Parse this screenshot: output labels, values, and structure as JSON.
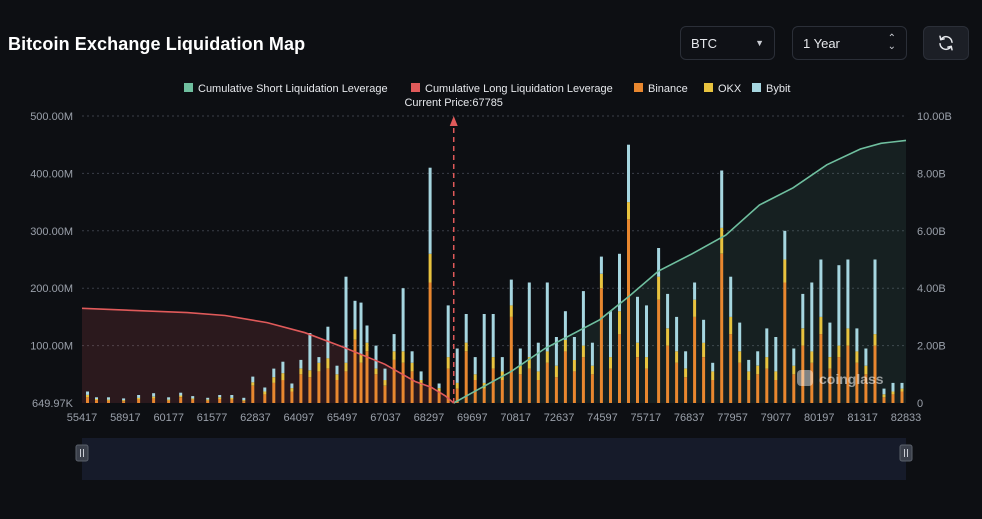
{
  "header": {
    "title": "Bitcoin Exchange Liquidation Map",
    "coin_select": "BTC",
    "range_select": "1 Year"
  },
  "colors": {
    "background": "#0d0f13",
    "short_line": "#6fbf9f",
    "long_line": "#e05a5a",
    "binance": "#e8872f",
    "okx": "#e8c33f",
    "bybit": "#a6d6e0",
    "price_marker": "#e05a5a"
  },
  "watermark": "coinglass",
  "chart_data": {
    "type": "bar",
    "current_price_label": "Current Price:67785",
    "current_price": 67785,
    "legend": [
      {
        "name": "Cumulative Short Liquidation Leverage",
        "color": "#6fbf9f"
      },
      {
        "name": "Cumulative Long Liquidation Leverage",
        "color": "#e05a5a"
      },
      {
        "name": "Binance",
        "color": "#e8872f"
      },
      {
        "name": "OKX",
        "color": "#e8c33f"
      },
      {
        "name": "Bybit",
        "color": "#a6d6e0"
      }
    ],
    "legend_position": "top-center",
    "x_ticks": [
      "55417",
      "58917",
      "60177",
      "61577",
      "62837",
      "64097",
      "65497",
      "67037",
      "68297",
      "69697",
      "70817",
      "72637",
      "74597",
      "75717",
      "76837",
      "77957",
      "79077",
      "80197",
      "81317",
      "82833"
    ],
    "x_range": [
      55417,
      82833
    ],
    "y_left_ticks": [
      "649.97K",
      "100.00M",
      "200.00M",
      "300.00M",
      "400.00M",
      "500.00M"
    ],
    "y_left_range": [
      0,
      500
    ],
    "y_left_unit": "M",
    "y_right_ticks": [
      "0",
      "2.00B",
      "4.00B",
      "6.00B",
      "8.00B",
      "10.00B"
    ],
    "y_right_range": [
      0,
      10
    ],
    "y_right_unit": "B",
    "grid": true,
    "bars": [
      {
        "price": 55600,
        "binance": 10,
        "okx": 4,
        "bybit": 6
      },
      {
        "price": 55900,
        "binance": 5,
        "okx": 2,
        "bybit": 3
      },
      {
        "price": 56300,
        "binance": 4,
        "okx": 2,
        "bybit": 4
      },
      {
        "price": 56800,
        "binance": 3,
        "okx": 2,
        "bybit": 3
      },
      {
        "price": 57300,
        "binance": 6,
        "okx": 3,
        "bybit": 5
      },
      {
        "price": 57800,
        "binance": 8,
        "okx": 3,
        "bybit": 6
      },
      {
        "price": 58300,
        "binance": 4,
        "okx": 2,
        "bybit": 4
      },
      {
        "price": 58700,
        "binance": 10,
        "okx": 3,
        "bybit": 5
      },
      {
        "price": 59100,
        "binance": 6,
        "okx": 2,
        "bybit": 4
      },
      {
        "price": 59600,
        "binance": 4,
        "okx": 2,
        "bybit": 3
      },
      {
        "price": 60000,
        "binance": 7,
        "okx": 3,
        "bybit": 4
      },
      {
        "price": 60400,
        "binance": 6,
        "okx": 3,
        "bybit": 5
      },
      {
        "price": 60800,
        "binance": 3,
        "okx": 2,
        "bybit": 4
      },
      {
        "price": 61100,
        "binance": 30,
        "okx": 6,
        "bybit": 10
      },
      {
        "price": 61500,
        "binance": 15,
        "okx": 5,
        "bybit": 7
      },
      {
        "price": 61800,
        "binance": 35,
        "okx": 10,
        "bybit": 15
      },
      {
        "price": 62100,
        "binance": 40,
        "okx": 12,
        "bybit": 20
      },
      {
        "price": 62400,
        "binance": 20,
        "okx": 6,
        "bybit": 8
      },
      {
        "price": 62700,
        "binance": 50,
        "okx": 10,
        "bybit": 15
      },
      {
        "price": 63000,
        "binance": 45,
        "okx": 12,
        "bybit": 65
      },
      {
        "price": 63300,
        "binance": 55,
        "okx": 15,
        "bybit": 10
      },
      {
        "price": 63600,
        "binance": 60,
        "okx": 18,
        "bybit": 55
      },
      {
        "price": 63900,
        "binance": 40,
        "okx": 10,
        "bybit": 15
      },
      {
        "price": 64200,
        "binance": 55,
        "okx": 15,
        "bybit": 150
      },
      {
        "price": 64500,
        "binance": 110,
        "okx": 18,
        "bybit": 50
      },
      {
        "price": 64700,
        "binance": 70,
        "okx": 15,
        "bybit": 90
      },
      {
        "price": 64900,
        "binance": 90,
        "okx": 15,
        "bybit": 30
      },
      {
        "price": 65200,
        "binance": 50,
        "okx": 10,
        "bybit": 40
      },
      {
        "price": 65500,
        "binance": 30,
        "okx": 10,
        "bybit": 20
      },
      {
        "price": 65800,
        "binance": 75,
        "okx": 15,
        "bybit": 30
      },
      {
        "price": 66100,
        "binance": 70,
        "okx": 20,
        "bybit": 110
      },
      {
        "price": 66400,
        "binance": 55,
        "okx": 15,
        "bybit": 20
      },
      {
        "price": 66700,
        "binance": 30,
        "okx": 10,
        "bybit": 15
      },
      {
        "price": 67000,
        "binance": 210,
        "okx": 50,
        "bybit": 150
      },
      {
        "price": 67300,
        "binance": 20,
        "okx": 6,
        "bybit": 8
      },
      {
        "price": 67600,
        "binance": 60,
        "okx": 20,
        "bybit": 90
      },
      {
        "price": 67900,
        "binance": 25,
        "okx": 10,
        "bybit": 60
      },
      {
        "price": 68200,
        "binance": 90,
        "okx": 15,
        "bybit": 50
      },
      {
        "price": 68500,
        "binance": 40,
        "okx": 10,
        "bybit": 30
      },
      {
        "price": 68800,
        "binance": 25,
        "okx": 10,
        "bybit": 120
      },
      {
        "price": 69100,
        "binance": 60,
        "okx": 20,
        "bybit": 75
      },
      {
        "price": 69400,
        "binance": 40,
        "okx": 15,
        "bybit": 25
      },
      {
        "price": 69700,
        "binance": 150,
        "okx": 20,
        "bybit": 45
      },
      {
        "price": 70000,
        "binance": 50,
        "okx": 15,
        "bybit": 30
      },
      {
        "price": 70300,
        "binance": 60,
        "okx": 20,
        "bybit": 130
      },
      {
        "price": 70600,
        "binance": 40,
        "okx": 15,
        "bybit": 50
      },
      {
        "price": 70900,
        "binance": 70,
        "okx": 20,
        "bybit": 120
      },
      {
        "price": 71200,
        "binance": 45,
        "okx": 20,
        "bybit": 50
      },
      {
        "price": 71500,
        "binance": 90,
        "okx": 20,
        "bybit": 50
      },
      {
        "price": 71800,
        "binance": 55,
        "okx": 20,
        "bybit": 40
      },
      {
        "price": 72100,
        "binance": 80,
        "okx": 20,
        "bybit": 95
      },
      {
        "price": 72400,
        "binance": 50,
        "okx": 15,
        "bybit": 40
      },
      {
        "price": 72700,
        "binance": 200,
        "okx": 25,
        "bybit": 30
      },
      {
        "price": 73000,
        "binance": 60,
        "okx": 20,
        "bybit": 80
      },
      {
        "price": 73300,
        "binance": 120,
        "okx": 40,
        "bybit": 100
      },
      {
        "price": 73600,
        "binance": 320,
        "okx": 30,
        "bybit": 100
      },
      {
        "price": 73900,
        "binance": 80,
        "okx": 25,
        "bybit": 80
      },
      {
        "price": 74200,
        "binance": 60,
        "okx": 20,
        "bybit": 90
      },
      {
        "price": 74600,
        "binance": 180,
        "okx": 40,
        "bybit": 50
      },
      {
        "price": 74900,
        "binance": 100,
        "okx": 30,
        "bybit": 60
      },
      {
        "price": 75200,
        "binance": 70,
        "okx": 20,
        "bybit": 60
      },
      {
        "price": 75500,
        "binance": 45,
        "okx": 15,
        "bybit": 30
      },
      {
        "price": 75800,
        "binance": 150,
        "okx": 30,
        "bybit": 30
      },
      {
        "price": 76100,
        "binance": 80,
        "okx": 25,
        "bybit": 40
      },
      {
        "price": 76400,
        "binance": 40,
        "okx": 15,
        "bybit": 15
      },
      {
        "price": 76700,
        "binance": 260,
        "okx": 45,
        "bybit": 100
      },
      {
        "price": 77000,
        "binance": 120,
        "okx": 30,
        "bybit": 70
      },
      {
        "price": 77300,
        "binance": 70,
        "okx": 20,
        "bybit": 50
      },
      {
        "price": 77600,
        "binance": 40,
        "okx": 15,
        "bybit": 20
      },
      {
        "price": 77900,
        "binance": 50,
        "okx": 15,
        "bybit": 25
      },
      {
        "price": 78200,
        "binance": 60,
        "okx": 20,
        "bybit": 50
      },
      {
        "price": 78500,
        "binance": 40,
        "okx": 15,
        "bybit": 60
      },
      {
        "price": 78800,
        "binance": 210,
        "okx": 40,
        "bybit": 50
      },
      {
        "price": 79100,
        "binance": 50,
        "okx": 15,
        "bybit": 30
      },
      {
        "price": 79400,
        "binance": 100,
        "okx": 30,
        "bybit": 60
      },
      {
        "price": 79700,
        "binance": 70,
        "okx": 20,
        "bybit": 120
      },
      {
        "price": 80000,
        "binance": 120,
        "okx": 30,
        "bybit": 100
      },
      {
        "price": 80300,
        "binance": 60,
        "okx": 20,
        "bybit": 60
      },
      {
        "price": 80600,
        "binance": 80,
        "okx": 20,
        "bybit": 140
      },
      {
        "price": 80900,
        "binance": 100,
        "okx": 30,
        "bybit": 120
      },
      {
        "price": 81200,
        "binance": 70,
        "okx": 20,
        "bybit": 40
      },
      {
        "price": 81500,
        "binance": 50,
        "okx": 15,
        "bybit": 30
      },
      {
        "price": 81800,
        "binance": 100,
        "okx": 20,
        "bybit": 130
      },
      {
        "price": 82100,
        "binance": 10,
        "okx": 5,
        "bybit": 10
      },
      {
        "price": 82400,
        "binance": 15,
        "okx": 5,
        "bybit": 15
      },
      {
        "price": 82700,
        "binance": 20,
        "okx": 5,
        "bybit": 10
      }
    ],
    "series": [
      {
        "name": "Cumulative Long Liquidation Leverage",
        "x": [
          55417,
          58917,
          60177,
          61577,
          62837,
          64097,
          65497,
          66000,
          66500,
          67037,
          67500,
          67785
        ],
        "y": [
          3.3,
          3.15,
          3.05,
          2.8,
          2.45,
          1.95,
          1.35,
          1.05,
          0.75,
          0.55,
          0.25,
          0
        ]
      },
      {
        "name": "Cumulative Short Liquidation Leverage",
        "x": [
          67785,
          68297,
          69697,
          70817,
          72637,
          73600,
          74597,
          75717,
          76837,
          77957,
          79077,
          80197,
          81317,
          82000,
          82833
        ],
        "y": [
          0,
          0.3,
          1.1,
          1.9,
          2.9,
          3.7,
          4.6,
          5.2,
          5.85,
          6.9,
          7.5,
          8.3,
          8.85,
          9.05,
          9.15
        ]
      }
    ]
  }
}
